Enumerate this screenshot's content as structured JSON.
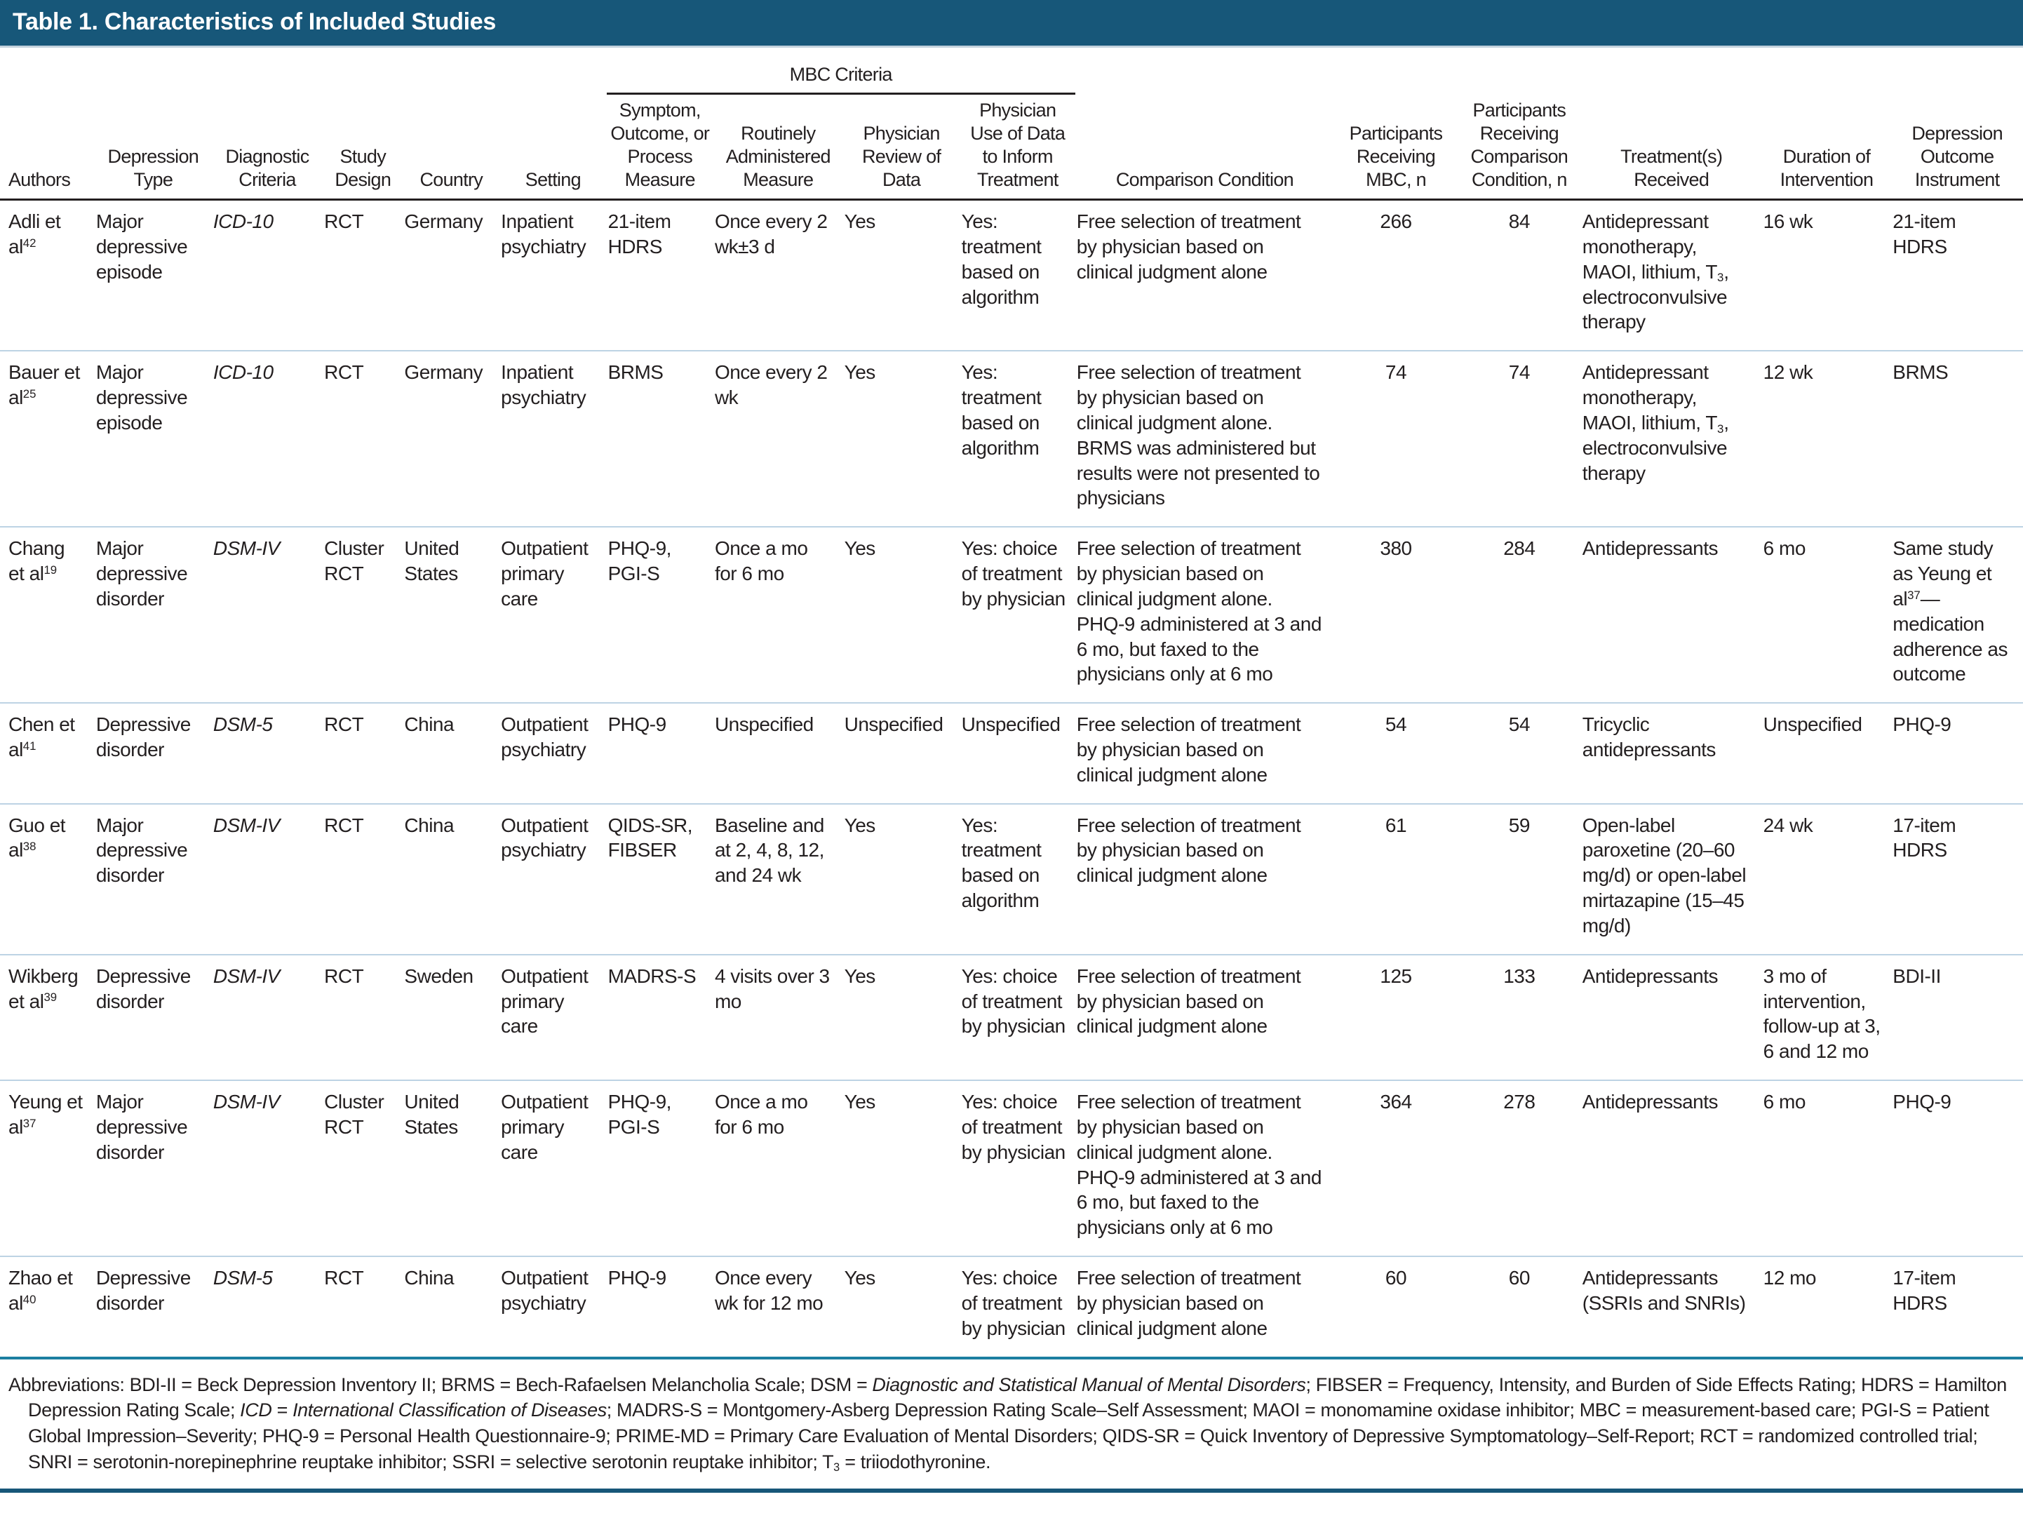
{
  "title": "Table 1. Characteristics of Included Studies",
  "colors": {
    "title_bar_background": "#175779",
    "title_text": "#ffffff",
    "header_rule": "#231f20",
    "row_divider": "#bdd3e4",
    "table_bottom_rule": "#1d7fa1",
    "page_bottom_rule": "#175779",
    "body_text": "#231f20"
  },
  "table": {
    "group_header": "MBC Criteria",
    "headers": {
      "authors": "Authors",
      "depression_type": "Depression Type",
      "diagnostic_criteria": "Diagnostic Criteria",
      "study_design": "Study Design",
      "country": "Country",
      "setting": "Setting",
      "symptom_measure": "Symptom, Outcome, or Process Measure",
      "routinely_administered": "Routinely Administered Measure",
      "physician_review": "Physician Review of Data",
      "physician_use": "Physician Use of Data to Inform Treatment",
      "comparison_condition": "Comparison Condition",
      "participants_mbc": "Participants Receiving MBC, n",
      "participants_comparison": "Participants Receiving Comparison Condition, n",
      "treatments_received": "Treatment(s) Received",
      "duration": "Duration of Intervention",
      "outcome_instrument": "Depression Outcome Instrument"
    },
    "rows": [
      {
        "authors": "Adli et al^{42}",
        "depression_type": "Major depressive episode",
        "diagnostic_criteria": "*ICD-10*",
        "study_design": "RCT",
        "country": "Germany",
        "setting": "Inpatient psychiatry",
        "symptom_measure": "21-item HDRS",
        "routinely_administered": "Once every 2 wk±3 d",
        "physician_review": "Yes",
        "physician_use": "Yes: treatment based on algorithm",
        "comparison_condition": "Free selection of treatment by physician based on clinical judgment alone",
        "participants_mbc": "266",
        "participants_comparison": "84",
        "treatments_received": "Antidepressant monotherapy, MAOI, lithium, T_{3}, electroconvulsive therapy",
        "duration": "16 wk",
        "outcome_instrument": "21-item HDRS"
      },
      {
        "authors": "Bauer et al^{25}",
        "depression_type": "Major depressive episode",
        "diagnostic_criteria": "*ICD-10*",
        "study_design": "RCT",
        "country": "Germany",
        "setting": "Inpatient psychiatry",
        "symptom_measure": "BRMS",
        "routinely_administered": "Once every 2 wk",
        "physician_review": "Yes",
        "physician_use": "Yes: treatment based on algorithm",
        "comparison_condition": "Free selection of treatment by physician based on clinical judgment alone. BRMS was administered but results were not presented to physicians",
        "participants_mbc": "74",
        "participants_comparison": "74",
        "treatments_received": "Antidepressant monotherapy, MAOI, lithium, T_{3}, electroconvulsive therapy",
        "duration": "12 wk",
        "outcome_instrument": "BRMS"
      },
      {
        "authors": "Chang et al^{19}",
        "depression_type": "Major depressive disorder",
        "diagnostic_criteria": "*DSM-IV*",
        "study_design": "Cluster RCT",
        "country": "United States",
        "setting": "Outpatient primary care",
        "symptom_measure": "PHQ-9, PGI-S",
        "routinely_administered": "Once a mo for 6 mo",
        "physician_review": "Yes",
        "physician_use": "Yes: choice of treatment by physician",
        "comparison_condition": "Free selection of treatment by physician based on clinical judgment alone. PHQ-9 administered at 3 and 6 mo, but faxed to the physicians only at 6 mo",
        "participants_mbc": "380",
        "participants_comparison": "284",
        "treatments_received": "Antidepressants",
        "duration": "6 mo",
        "outcome_instrument": "Same study as Yeung et al^{37}—medication adherence as outcome"
      },
      {
        "authors": "Chen et al^{41}",
        "depression_type": "Depressive disorder",
        "diagnostic_criteria": "*DSM-5*",
        "study_design": "RCT",
        "country": "China",
        "setting": "Outpatient psychiatry",
        "symptom_measure": "PHQ-9",
        "routinely_administered": "Unspecified",
        "physician_review": "Unspecified",
        "physician_use": "Unspecified",
        "comparison_condition": "Free selection of treatment by physician based on clinical judgment alone",
        "participants_mbc": "54",
        "participants_comparison": "54",
        "treatments_received": "Tricyclic antidepressants",
        "duration": "Unspecified",
        "outcome_instrument": "PHQ-9"
      },
      {
        "authors": "Guo et al^{38}",
        "depression_type": "Major depressive disorder",
        "diagnostic_criteria": "*DSM-IV*",
        "study_design": "RCT",
        "country": "China",
        "setting": "Outpatient psychiatry",
        "symptom_measure": "QIDS-SR, FIBSER",
        "routinely_administered": "Baseline and at 2, 4, 8, 12, and 24 wk",
        "physician_review": "Yes",
        "physician_use": "Yes: treatment based on algorithm",
        "comparison_condition": "Free selection of treatment by physician based on clinical judgment alone",
        "participants_mbc": "61",
        "participants_comparison": "59",
        "treatments_received": "Open-label paroxetine (20–60 mg/d) or open-label mirtazapine (15–45 mg/d)",
        "duration": "24 wk",
        "outcome_instrument": "17-item HDRS"
      },
      {
        "authors": "Wikberg et al^{39}",
        "depression_type": "Depressive disorder",
        "diagnostic_criteria": "*DSM-IV*",
        "study_design": "RCT",
        "country": "Sweden",
        "setting": "Outpatient primary care",
        "symptom_measure": "MADRS-S",
        "routinely_administered": "4 visits over 3 mo",
        "physician_review": "Yes",
        "physician_use": "Yes: choice of treatment by physician",
        "comparison_condition": "Free selection of treatment by physician based on clinical judgment alone",
        "participants_mbc": "125",
        "participants_comparison": "133",
        "treatments_received": "Antidepressants",
        "duration": "3 mo of intervention, follow-up at 3, 6 and 12 mo",
        "outcome_instrument": "BDI-II"
      },
      {
        "authors": "Yeung et al^{37}",
        "depression_type": "Major depressive disorder",
        "diagnostic_criteria": "*DSM-IV*",
        "study_design": "Cluster RCT",
        "country": "United States",
        "setting": "Outpatient primary care",
        "symptom_measure": "PHQ-9, PGI-S",
        "routinely_administered": "Once a mo for 6 mo",
        "physician_review": "Yes",
        "physician_use": "Yes: choice of treatment by physician",
        "comparison_condition": "Free selection of treatment by physician based on clinical judgment alone. PHQ-9 administered at 3 and 6 mo, but faxed to the physicians only at 6 mo",
        "participants_mbc": "364",
        "participants_comparison": "278",
        "treatments_received": "Antidepressants",
        "duration": "6 mo",
        "outcome_instrument": "PHQ-9"
      },
      {
        "authors": "Zhao et al^{40}",
        "depression_type": "Depressive disorder",
        "diagnostic_criteria": "*DSM-5*",
        "study_design": "RCT",
        "country": "China",
        "setting": "Outpatient psychiatry",
        "symptom_measure": "PHQ-9",
        "routinely_administered": "Once every wk for 12 mo",
        "physician_review": "Yes",
        "physician_use": "Yes: choice of treatment by physician",
        "comparison_condition": "Free selection of treatment by physician based on clinical judgment alone",
        "participants_mbc": "60",
        "participants_comparison": "60",
        "treatments_received": "Antidepressants (SSRIs and SNRIs)",
        "duration": "12 mo",
        "outcome_instrument": "17-item HDRS"
      }
    ]
  },
  "footnote": "Abbreviations: BDI-II = Beck Depression Inventory II; BRMS = Bech-Rafaelsen Melancholia Scale; DSM = *Diagnostic and Statistical Manual of Mental Disorders*; FIBSER = Frequency, Intensity, and Burden of Side Effects Rating; HDRS = Hamilton Depression Rating Scale; *ICD* = *International Classification of Diseases*; MADRS-S = Montgomery-Asberg Depression Rating Scale–Self Assessment; MAOI = monomamine oxidase inhibitor; MBC = measurement-based care; PGI-S = Patient Global Impression–Severity; PHQ-9 = Personal Health Questionnaire-9; PRIME-MD = Primary Care Evaluation of Mental Disorders; QIDS-SR = Quick Inventory of Depressive Symptomatology–Self-Report; RCT = randomized controlled trial; SNRI = serotonin-norepinephrine reuptake inhibitor; SSRI = selective serotonin reuptake inhibitor; T_{3} = triiodothyronine."
}
